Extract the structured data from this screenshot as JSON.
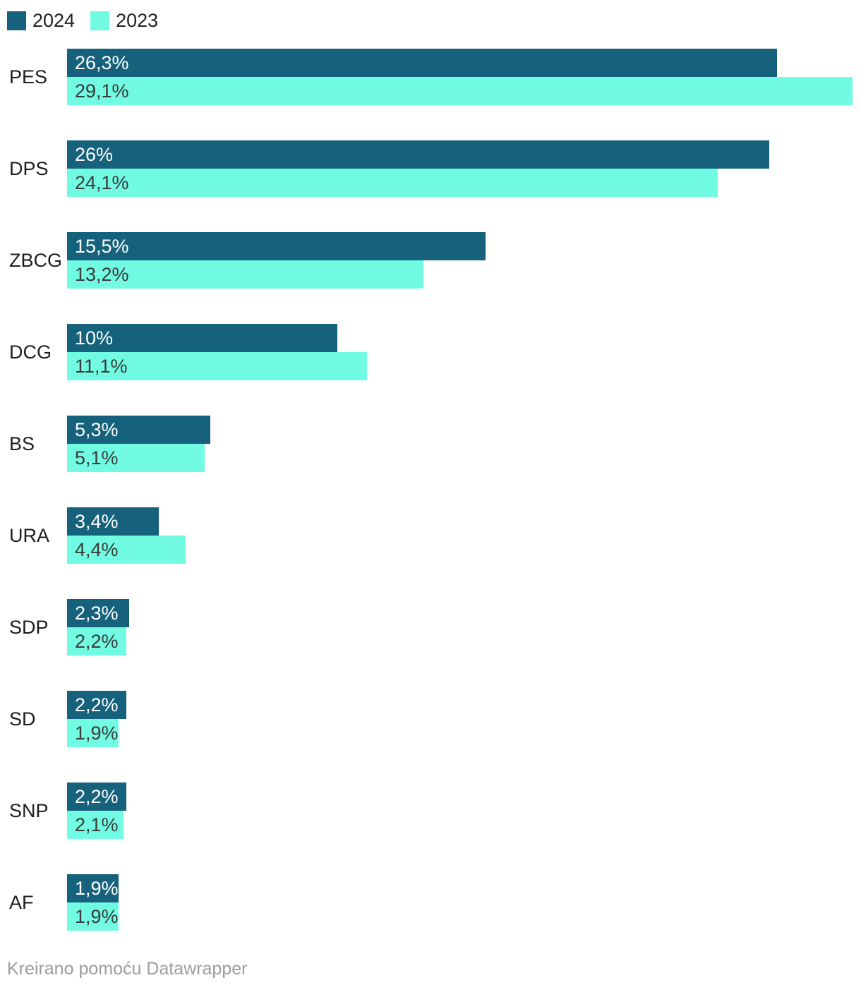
{
  "legend": {
    "items": [
      {
        "label": "2024",
        "color": "#16617c"
      },
      {
        "label": "2023",
        "color": "#71fbe2"
      }
    ]
  },
  "footer": {
    "text": "Kreirano pomoću Datawrapper"
  },
  "chart_data": {
    "type": "bar",
    "orientation": "horizontal",
    "title": "",
    "xlabel": "",
    "ylabel": "",
    "grid": false,
    "legend_position": "top-left",
    "value_suffix": "%",
    "decimal_separator": ",",
    "xlim": [
      0,
      29.1
    ],
    "categories": [
      "PES",
      "DPS",
      "ZBCG",
      "DCG",
      "BS",
      "URA",
      "SDP",
      "SD",
      "SNP",
      "AF"
    ],
    "series": [
      {
        "name": "2024",
        "color": "#16617c",
        "label_color": "#ffffff",
        "values": [
          26.3,
          26,
          15.5,
          10,
          5.3,
          3.4,
          2.3,
          2.2,
          2.2,
          1.9
        ],
        "labels": [
          "26,3%",
          "26%",
          "15,5%",
          "10%",
          "5,3%",
          "3,4%",
          "2,3%",
          "2,2%",
          "2,2%",
          "1,9%"
        ]
      },
      {
        "name": "2023",
        "color": "#71fbe2",
        "label_color": "#3a3a3a",
        "values": [
          29.1,
          24.1,
          13.2,
          11.1,
          5.1,
          4.4,
          2.2,
          1.9,
          2.1,
          1.9
        ],
        "labels": [
          "29,1%",
          "24,1%",
          "13,2%",
          "11,1%",
          "5,1%",
          "4,4%",
          "2,2%",
          "1,9%",
          "2,1%",
          "1,9%"
        ]
      }
    ]
  }
}
